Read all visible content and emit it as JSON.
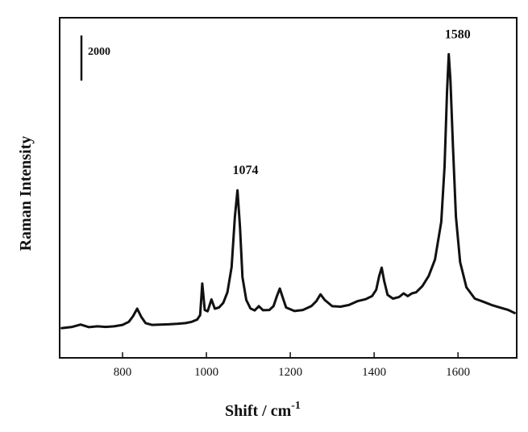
{
  "chart_data": {
    "type": "line",
    "xlabel": "Shift / cm",
    "xlabel_superscript": "-1",
    "ylabel": "Raman Intensity",
    "xlim": [
      650,
      1740
    ],
    "ylim": [
      0,
      13500
    ],
    "x_ticks": [
      800,
      1000,
      1200,
      1400,
      1600
    ],
    "y_ticks_shown": false,
    "grid": false,
    "legend": "none",
    "scale_bar": {
      "label": "2000",
      "value": 2000
    },
    "annotations": [
      {
        "text": "1074",
        "x": 1074,
        "y": 6650
      },
      {
        "text": "1580",
        "x": 1580,
        "y": 12050
      }
    ],
    "series": [
      {
        "color": "#111111",
        "points": [
          [
            655,
            1180
          ],
          [
            680,
            1230
          ],
          [
            700,
            1320
          ],
          [
            720,
            1220
          ],
          [
            740,
            1250
          ],
          [
            760,
            1230
          ],
          [
            780,
            1250
          ],
          [
            800,
            1310
          ],
          [
            815,
            1430
          ],
          [
            825,
            1650
          ],
          [
            835,
            1950
          ],
          [
            845,
            1620
          ],
          [
            855,
            1380
          ],
          [
            870,
            1310
          ],
          [
            890,
            1320
          ],
          [
            910,
            1330
          ],
          [
            930,
            1350
          ],
          [
            950,
            1380
          ],
          [
            965,
            1430
          ],
          [
            978,
            1520
          ],
          [
            985,
            1700
          ],
          [
            990,
            2950
          ],
          [
            996,
            1900
          ],
          [
            1003,
            1850
          ],
          [
            1012,
            2320
          ],
          [
            1020,
            1950
          ],
          [
            1030,
            2000
          ],
          [
            1040,
            2180
          ],
          [
            1050,
            2600
          ],
          [
            1060,
            3600
          ],
          [
            1068,
            5600
          ],
          [
            1074,
            6650
          ],
          [
            1080,
            5200
          ],
          [
            1086,
            3200
          ],
          [
            1095,
            2300
          ],
          [
            1105,
            1960
          ],
          [
            1115,
            1880
          ],
          [
            1125,
            2050
          ],
          [
            1135,
            1890
          ],
          [
            1150,
            1900
          ],
          [
            1160,
            2050
          ],
          [
            1168,
            2450
          ],
          [
            1175,
            2750
          ],
          [
            1182,
            2400
          ],
          [
            1190,
            2000
          ],
          [
            1210,
            1860
          ],
          [
            1230,
            1900
          ],
          [
            1250,
            2050
          ],
          [
            1262,
            2250
          ],
          [
            1272,
            2520
          ],
          [
            1282,
            2300
          ],
          [
            1300,
            2050
          ],
          [
            1320,
            2030
          ],
          [
            1340,
            2100
          ],
          [
            1360,
            2250
          ],
          [
            1380,
            2330
          ],
          [
            1395,
            2450
          ],
          [
            1405,
            2700
          ],
          [
            1412,
            3250
          ],
          [
            1418,
            3580
          ],
          [
            1424,
            3050
          ],
          [
            1432,
            2500
          ],
          [
            1445,
            2350
          ],
          [
            1460,
            2420
          ],
          [
            1470,
            2560
          ],
          [
            1480,
            2450
          ],
          [
            1490,
            2560
          ],
          [
            1500,
            2600
          ],
          [
            1515,
            2850
          ],
          [
            1530,
            3250
          ],
          [
            1545,
            3900
          ],
          [
            1560,
            5400
          ],
          [
            1568,
            7600
          ],
          [
            1574,
            10600
          ],
          [
            1578,
            12050
          ],
          [
            1582,
            11000
          ],
          [
            1588,
            8400
          ],
          [
            1595,
            5600
          ],
          [
            1605,
            3800
          ],
          [
            1620,
            2800
          ],
          [
            1640,
            2350
          ],
          [
            1660,
            2230
          ],
          [
            1680,
            2100
          ],
          [
            1700,
            2000
          ],
          [
            1720,
            1900
          ],
          [
            1735,
            1780
          ]
        ]
      }
    ]
  }
}
